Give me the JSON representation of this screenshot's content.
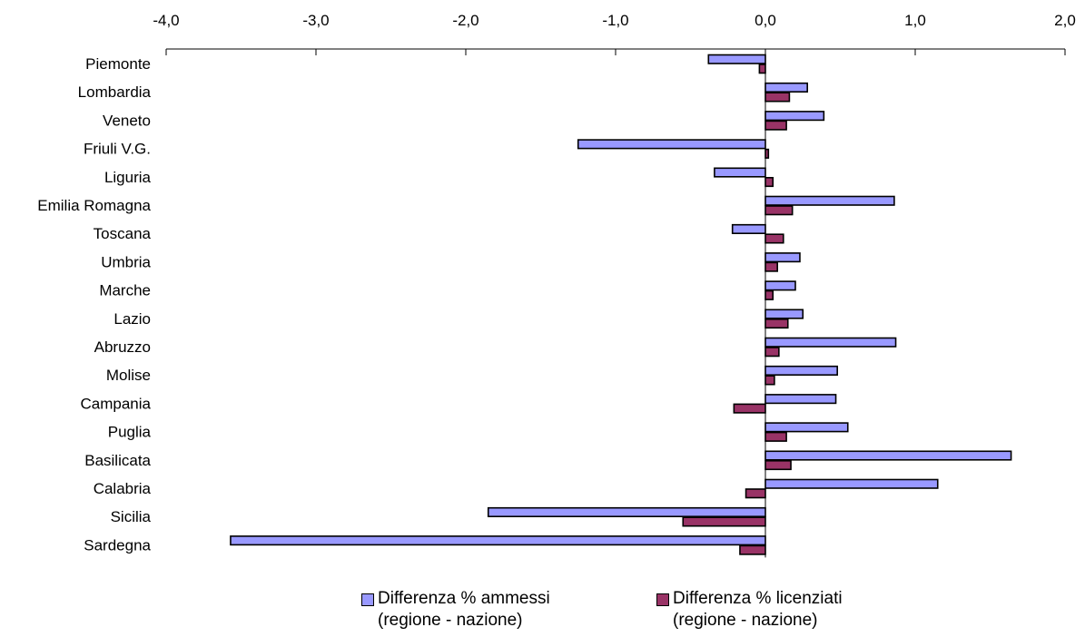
{
  "chart_data": {
    "type": "bar",
    "orientation": "horizontal",
    "categories": [
      "Piemonte",
      "Lombardia",
      "Veneto",
      "Friuli V.G.",
      "Liguria",
      "Emilia Romagna",
      "Toscana",
      "Umbria",
      "Marche",
      "Lazio",
      "Abruzzo",
      "Molise",
      "Campania",
      "Puglia",
      "Basilicata",
      "Calabria",
      "Sicilia",
      "Sardegna"
    ],
    "series": [
      {
        "name": "Differenza % ammessi\n(regione - nazione)",
        "color": "#9999ff",
        "values": [
          -0.38,
          0.28,
          0.39,
          -1.25,
          -0.34,
          0.86,
          -0.22,
          0.23,
          0.2,
          0.25,
          0.87,
          0.48,
          0.47,
          0.55,
          1.64,
          1.15,
          -1.85,
          -3.57
        ]
      },
      {
        "name": "Differenza % licenziati\n(regione - nazione)",
        "color": "#993366",
        "values": [
          -0.04,
          0.16,
          0.14,
          0.02,
          0.05,
          0.18,
          0.12,
          0.08,
          0.05,
          0.15,
          0.09,
          0.06,
          -0.21,
          0.14,
          0.17,
          -0.13,
          -0.55,
          -0.17
        ]
      }
    ],
    "xlim": [
      -4.0,
      2.0
    ],
    "xticks": [
      -4.0,
      -3.0,
      -2.0,
      -1.0,
      0.0,
      1.0,
      2.0
    ],
    "tick_labels": [
      "-4,0",
      "-3,0",
      "-2,0",
      "-1,0",
      "0,0",
      "1,0",
      "2,0"
    ],
    "axis_position": "top",
    "grid": false,
    "legend_position": "bottom",
    "title": "",
    "xlabel": "",
    "ylabel": ""
  }
}
